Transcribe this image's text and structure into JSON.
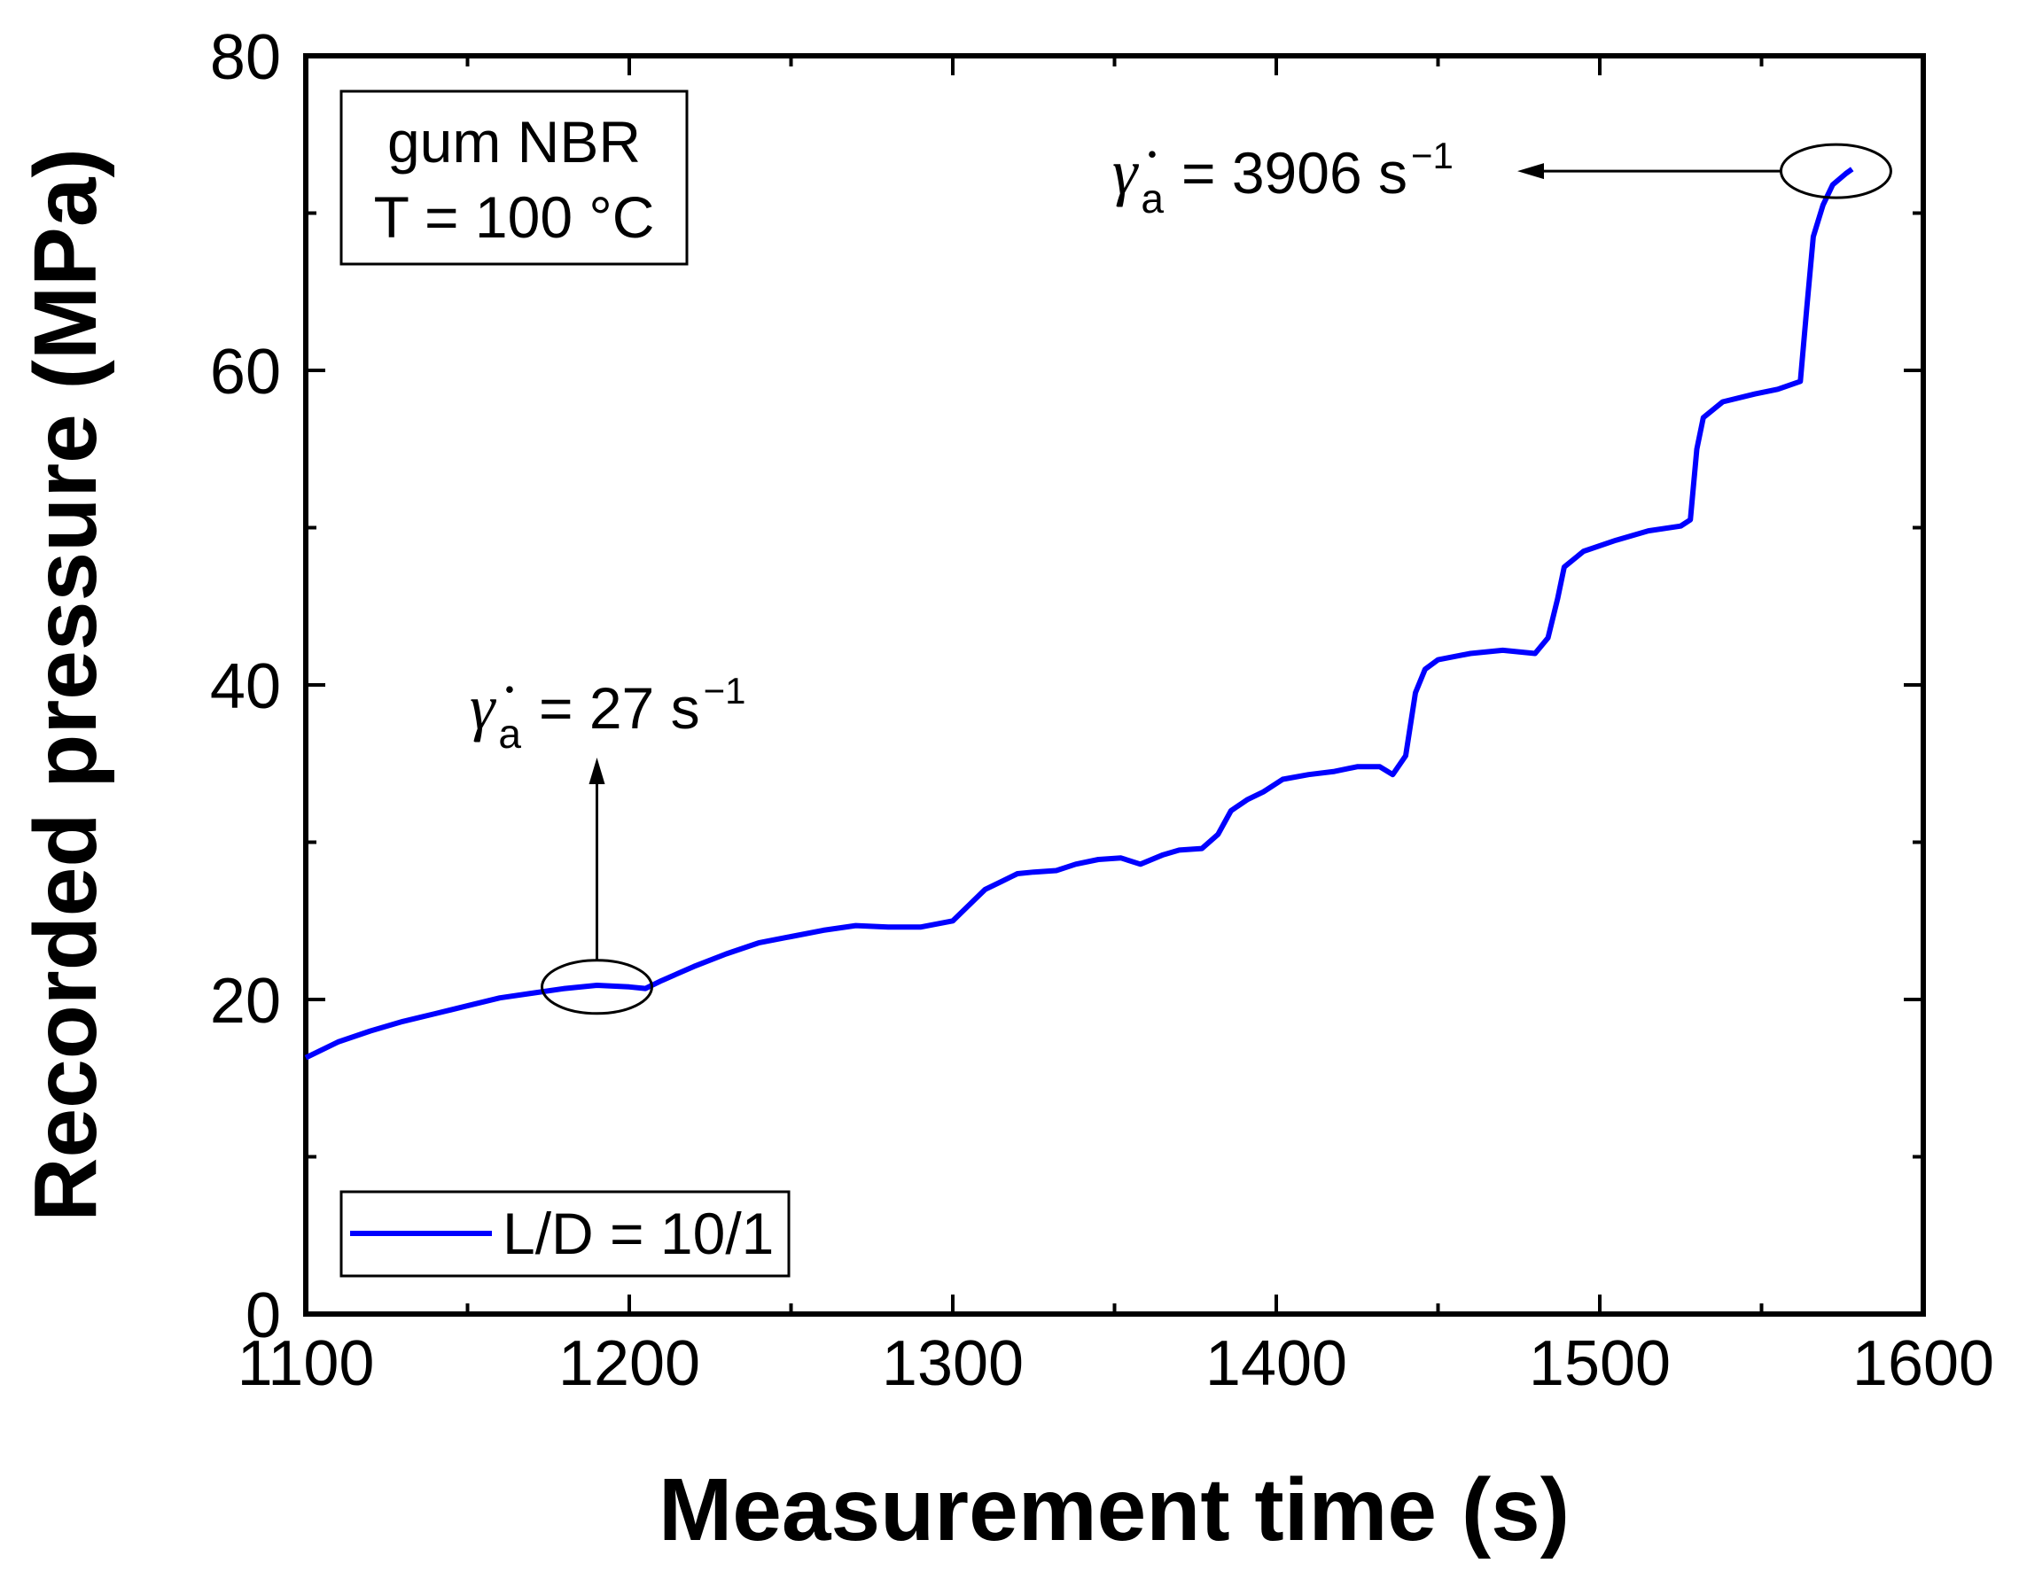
{
  "chart_data": {
    "type": "line",
    "xlabel": "Measurement time (s)",
    "ylabel": "Recorded pressure (MPa)",
    "xlim": [
      1100,
      1600
    ],
    "ylim": [
      0,
      80
    ],
    "xticks": [
      "1100",
      "1200",
      "1300",
      "1400",
      "1500",
      "1600"
    ],
    "yticks": [
      "0",
      "20",
      "40",
      "60",
      "80"
    ],
    "grid": false,
    "legend_position": "bottom-left",
    "condition_box": {
      "line1": "gum NBR",
      "line2": "T = 100 °C"
    },
    "series": [
      {
        "name": "L/D = 10/1",
        "color": "#0000ff",
        "x": [
          1100,
          1110,
          1120,
          1130,
          1140,
          1150,
          1160,
          1170,
          1180,
          1190,
          1200,
          1205,
          1210,
          1220,
          1230,
          1240,
          1250,
          1260,
          1270,
          1280,
          1290,
          1300,
          1305,
          1310,
          1315,
          1320,
          1325,
          1332,
          1338,
          1345,
          1352,
          1358,
          1365,
          1370,
          1377,
          1382,
          1386,
          1391,
          1396,
          1402,
          1410,
          1418,
          1425,
          1432,
          1436,
          1440,
          1443,
          1446,
          1450,
          1460,
          1470,
          1480,
          1484,
          1487,
          1489,
          1495,
          1505,
          1515,
          1525,
          1528,
          1530,
          1532,
          1538,
          1548,
          1555,
          1562,
          1564,
          1566,
          1569,
          1572,
          1576,
          1578
        ],
        "y": [
          16.3,
          17.3,
          18.0,
          18.6,
          19.1,
          19.6,
          20.1,
          20.4,
          20.7,
          20.9,
          20.8,
          20.7,
          21.2,
          22.1,
          22.9,
          23.6,
          24.0,
          24.4,
          24.7,
          24.6,
          24.6,
          25.0,
          26.0,
          27.0,
          27.5,
          28.0,
          28.1,
          28.2,
          28.6,
          28.9,
          29.0,
          28.6,
          29.2,
          29.5,
          29.6,
          30.5,
          32.0,
          32.7,
          33.2,
          34.0,
          34.3,
          34.5,
          34.8,
          34.8,
          34.3,
          35.5,
          39.5,
          41.0,
          41.6,
          42.0,
          42.2,
          42.0,
          43.0,
          45.5,
          47.5,
          48.5,
          49.2,
          49.8,
          50.1,
          50.5,
          55.0,
          57.0,
          58.0,
          58.5,
          58.8,
          59.3,
          64.0,
          68.5,
          70.5,
          71.8,
          72.5,
          72.8
        ]
      }
    ],
    "annotations": [
      {
        "symbol": "γ̇",
        "subscript": "a",
        "text": "= 27 s",
        "superscript": "−1",
        "x": 1190,
        "y": 20.8,
        "arrow": "up"
      },
      {
        "symbol": "γ̇",
        "subscript": "a",
        "text": "= 3906 s",
        "superscript": "−1",
        "x": 1573,
        "y": 72.5,
        "arrow": "left"
      }
    ]
  }
}
